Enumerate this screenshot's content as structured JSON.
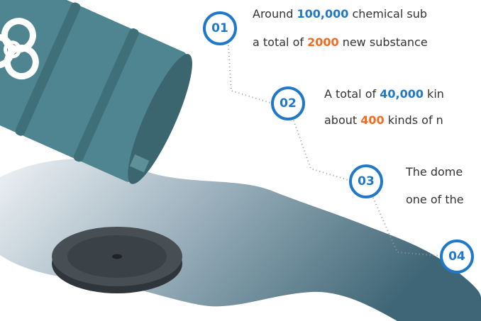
{
  "items": [
    {
      "number": "01",
      "lines": [
        {
          "before": "Around ",
          "highlight": "100,000",
          "after": " chemical sub",
          "highlight_color": "#1f78c8"
        },
        {
          "before": "a total of ",
          "highlight": "2000",
          "after": " new substance",
          "highlight_color": "#f26b21"
        }
      ]
    },
    {
      "number": "02",
      "lines": [
        {
          "before": "A total of ",
          "highlight": "40,000",
          "after": " kin",
          "highlight_color": "#1f78c8"
        },
        {
          "before": "about ",
          "highlight": "400",
          "after": " kinds of n",
          "highlight_color": "#f26b21"
        }
      ]
    },
    {
      "number": "03",
      "lines": [
        {
          "before": "The dome"
        },
        {
          "before": "one of the"
        }
      ]
    },
    {
      "number": "04",
      "lines": []
    }
  ]
}
